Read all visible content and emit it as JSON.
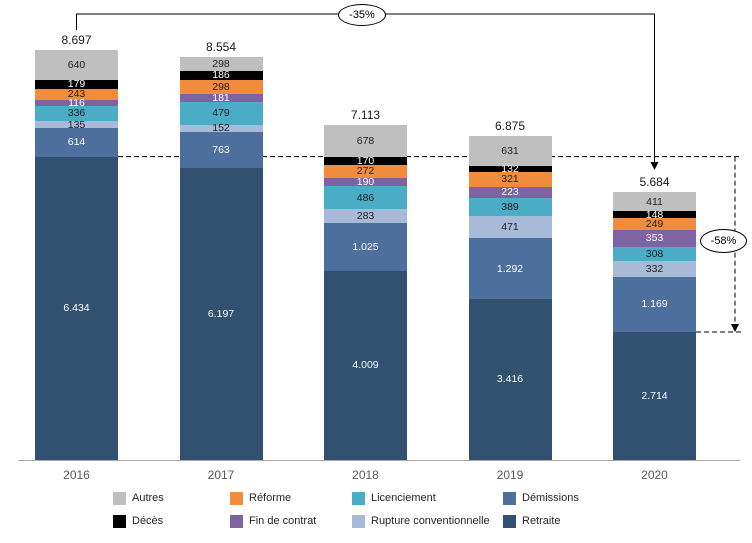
{
  "chart_data": {
    "type": "bar",
    "stacked": true,
    "categories": [
      "2016",
      "2017",
      "2018",
      "2019",
      "2020"
    ],
    "series": [
      {
        "name": "Retraite",
        "color": "#32506F",
        "label_color": "#FFFFFF",
        "values": [
          6434,
          6197,
          4009,
          3416,
          2714
        ]
      },
      {
        "name": "Démissions",
        "color": "#4C6F9D",
        "label_color": "#FFFFFF",
        "values": [
          614,
          763,
          1025,
          1292,
          1169
        ]
      },
      {
        "name": "Rupture conventionnelle",
        "color": "#A7BAD7",
        "label_color": "#1F1F1F",
        "values": [
          135,
          152,
          283,
          471,
          332
        ]
      },
      {
        "name": "Licenciement",
        "color": "#4BACC6",
        "label_color": "#1F1F1F",
        "values": [
          336,
          479,
          486,
          389,
          308
        ]
      },
      {
        "name": "Fin de contrat",
        "color": "#7E62A1",
        "label_color": "#FFFFFF",
        "values": [
          116,
          181,
          190,
          223,
          353
        ]
      },
      {
        "name": "Réforme",
        "color": "#F08C3C",
        "label_color": "#1F1F1F",
        "values": [
          243,
          298,
          272,
          321,
          249
        ]
      },
      {
        "name": "Décès",
        "color": "#000000",
        "label_color": "#FFFFFF",
        "values": [
          179,
          186,
          170,
          132,
          148
        ]
      },
      {
        "name": "Autres",
        "color": "#BFBFBF",
        "label_color": "#1F1F1F",
        "values": [
          640,
          298,
          678,
          631,
          411
        ]
      }
    ],
    "totals": [
      8697,
      8554,
      7113,
      6875,
      5684
    ],
    "ylim": [
      0,
      8697
    ],
    "number_format": "thousands separated by dot",
    "legend_position": "bottom"
  },
  "annotations": {
    "total_change": "-35%",
    "retraite_change": "-58%"
  },
  "legend": {
    "order": [
      "Autres",
      "Réforme",
      "Licenciement",
      "Démissions",
      "Décès",
      "Fin de contrat",
      "Rupture conventionnelle",
      "Retraite"
    ]
  }
}
